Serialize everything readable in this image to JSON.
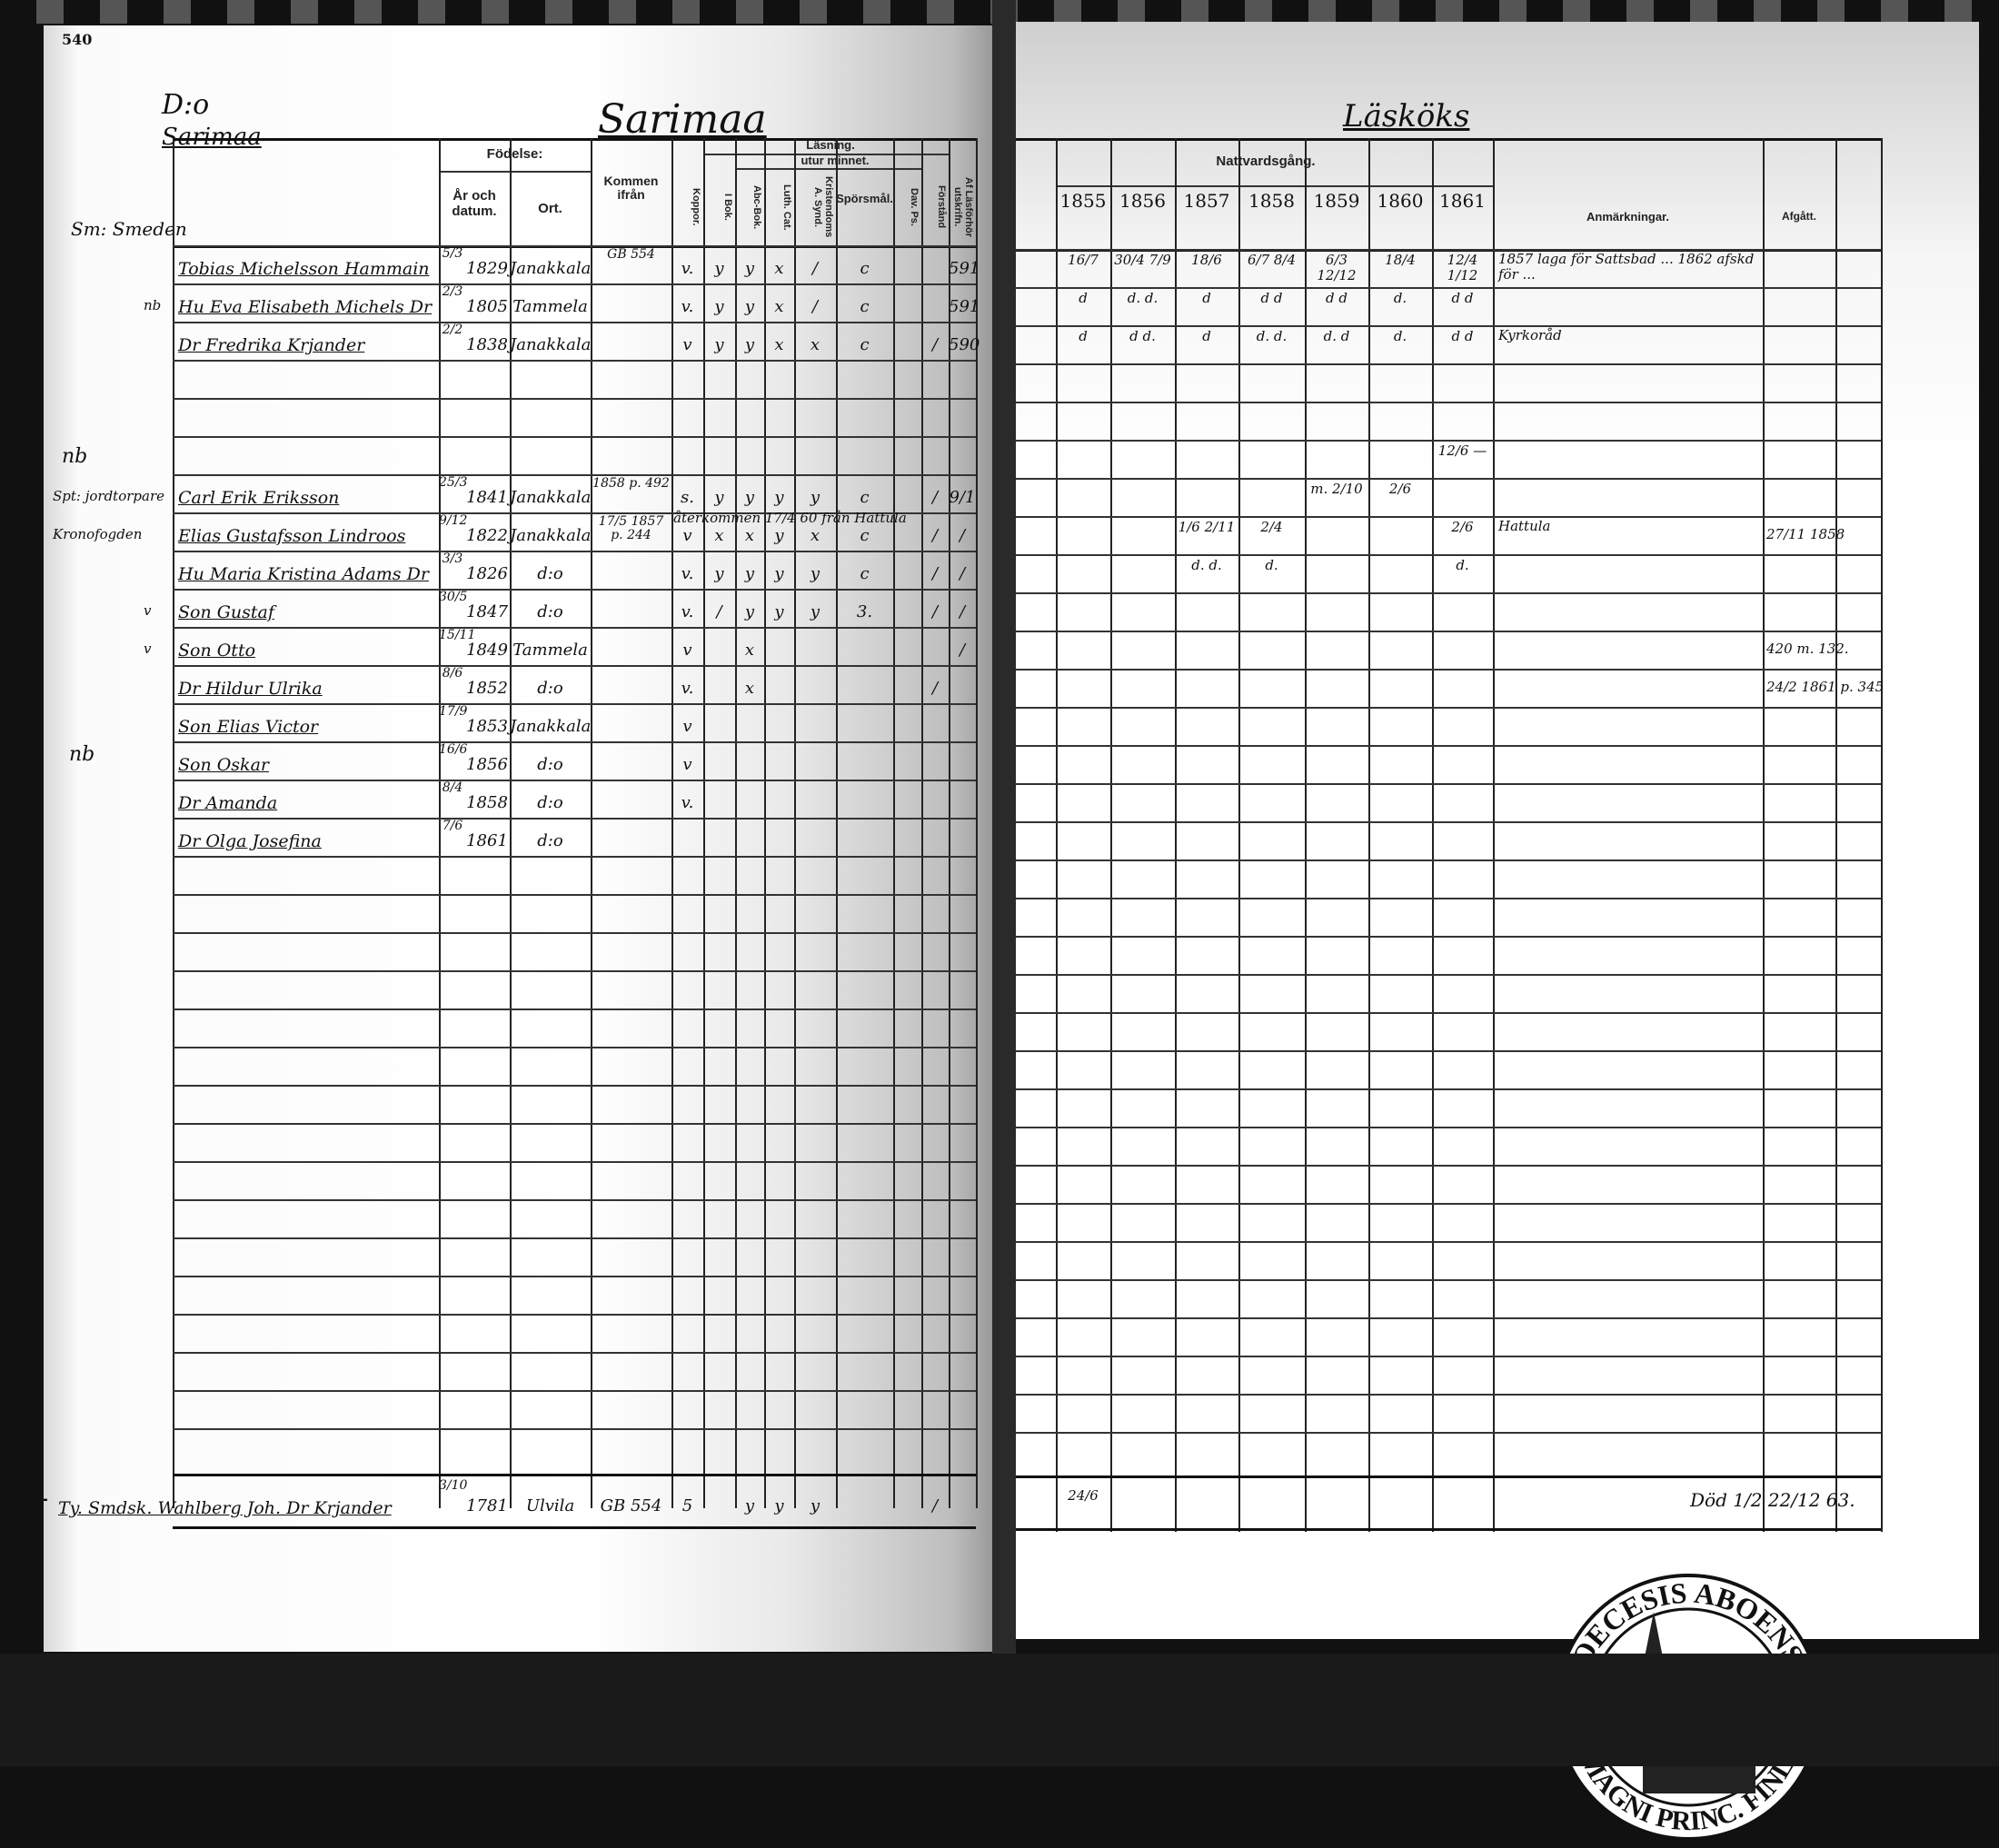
{
  "left_page": {
    "page_number": "540",
    "ditto_mark": "D:o",
    "village_small": "Sarimaa",
    "village_title": "Sarimaa",
    "household_label": "Sm: Smeden",
    "headers": {
      "birth": "Födelse:",
      "year_date": "År och datum.",
      "place": "Ort.",
      "came_from": "Kommen ifrån",
      "smallpox": "Koppor.",
      "reading": "Läsning.",
      "by_heart": "utur minnet.",
      "in_book": "I Bok.",
      "abc_book": "Abc-Bok.",
      "luth_cat": "Luth. Cat.",
      "a_synd": "Kristendoms A. Synd.",
      "questions": "Spörsmål.",
      "dav_ps": "Dav. Ps.",
      "col_12": "Förstånd",
      "col_13": "Af Läsförhör utskrifn."
    },
    "rows": [
      {
        "row": 0,
        "margin": "",
        "name": "Tobias Michelsson Hammain",
        "date": "5/3",
        "year": "1829",
        "place": "Janakkala",
        "from": "GB 554",
        "kopp": "v.",
        "ibok": "y",
        "abc": "y",
        "luth": "x",
        "asynd": "/",
        "spors": "c",
        "davps": "",
        "c12": "",
        "c13": "591"
      },
      {
        "row": 1,
        "margin": "nb",
        "name": "Hu Eva Elisabeth Michels Dr",
        "date": "2/3",
        "year": "1805",
        "place": "Tammela",
        "from": "",
        "kopp": "v.",
        "ibok": "y",
        "abc": "y",
        "luth": "x",
        "asynd": "/",
        "spors": "c",
        "davps": "",
        "c12": "",
        "c13": "591"
      },
      {
        "row": 2,
        "margin": "",
        "name": "Dr Fredrika Krjander",
        "date": "2/2",
        "year": "1838",
        "place": "Janakkala",
        "from": "",
        "kopp": "v",
        "ibok": "y",
        "abc": "y",
        "luth": "x",
        "asynd": "x",
        "spors": "c",
        "davps": "",
        "c12": "/",
        "c13": "590"
      },
      {
        "row": 6,
        "margin": "Spt: jordtorpare",
        "name": "Carl Erik Eriksson",
        "date": "25/3",
        "year": "1841",
        "place": "Janakkala",
        "from": "1858 p. 492",
        "kopp": "s.",
        "ibok": "y",
        "abc": "y",
        "luth": "y",
        "asynd": "y",
        "spors": "c",
        "davps": "",
        "c12": "/",
        "c13": "9/1"
      },
      {
        "row": 7,
        "margin": "Kronofogden",
        "name": "Elias Gustafsson Lindroos",
        "date": "9/12",
        "year": "1822",
        "place": "Janakkala",
        "from": "17/5 1857 p. 244",
        "kopp": "v",
        "ibok": "x",
        "abc": "x",
        "luth": "y",
        "asynd": "x",
        "spors": "c",
        "davps": "",
        "c12": "/",
        "c13": "/",
        "note": "återkommen 17/4 60 från Hattula"
      },
      {
        "row": 8,
        "margin": "",
        "name": "Hu Maria Kristina Adams Dr",
        "date": "3/3",
        "year": "1826",
        "place": "d:o",
        "from": "",
        "kopp": "v.",
        "ibok": "y",
        "abc": "y",
        "luth": "y",
        "asynd": "y",
        "spors": "c",
        "davps": "",
        "c12": "/",
        "c13": "/"
      },
      {
        "row": 9,
        "margin": "v",
        "name": "Son Gustaf",
        "date": "30/5",
        "year": "1847",
        "place": "d:o",
        "from": "",
        "kopp": "v.",
        "ibok": "/",
        "abc": "y",
        "luth": "y",
        "asynd": "y",
        "spors": "3.",
        "davps": "",
        "c12": "/",
        "c13": "/"
      },
      {
        "row": 10,
        "margin": "v",
        "name": "Son Otto",
        "date": "15/11",
        "year": "1849",
        "place": "Tammela",
        "from": "",
        "kopp": "v",
        "ibok": "",
        "abc": "x",
        "luth": "",
        "asynd": "",
        "spors": "",
        "davps": "",
        "c12": "",
        "c13": "/"
      },
      {
        "row": 11,
        "margin": "",
        "name": "Dr Hildur Ulrika",
        "date": "8/6",
        "year": "1852",
        "place": "d:o",
        "from": "",
        "kopp": "v.",
        "ibok": "",
        "abc": "x",
        "luth": "",
        "asynd": "",
        "spors": "",
        "davps": "",
        "c12": "/",
        "c13": ""
      },
      {
        "row": 12,
        "margin": "",
        "name": "Son Elias Victor",
        "date": "17/9",
        "year": "1853",
        "place": "Janakkala",
        "from": "",
        "kopp": "v",
        "ibok": "",
        "abc": "",
        "luth": "",
        "asynd": "",
        "spors": "",
        "davps": "",
        "c12": "",
        "c13": ""
      },
      {
        "row": 13,
        "margin": "",
        "name": "Son Oskar",
        "date": "16/6",
        "year": "1856",
        "place": "d:o",
        "from": "",
        "kopp": "v",
        "ibok": "",
        "abc": "",
        "luth": "",
        "asynd": "",
        "spors": "",
        "davps": "",
        "c12": "",
        "c13": ""
      },
      {
        "row": 14,
        "margin": "",
        "name": "Dr Amanda",
        "date": "8/4",
        "year": "1858",
        "place": "d:o",
        "from": "",
        "kopp": "v.",
        "ibok": "",
        "abc": "",
        "luth": "",
        "asynd": "",
        "spors": "",
        "davps": "",
        "c12": "",
        "c13": ""
      },
      {
        "row": 15,
        "margin": "",
        "name": "Dr Olga Josefina",
        "date": "7/6",
        "year": "1861",
        "place": "d:o",
        "from": "",
        "kopp": "",
        "ibok": "",
        "abc": "",
        "luth": "",
        "asynd": "",
        "spors": "",
        "davps": "",
        "c12": "",
        "c13": ""
      }
    ],
    "margin_nb_marks": [
      "nb",
      "nb"
    ],
    "footer_entry": {
      "cross": "+",
      "name": "Ty. Smdsk. Wahlberg Joh. Dr Krjander",
      "date": "3/10",
      "year": "1781",
      "place": "Ulvila",
      "from": "GB 554",
      "kopp": "5",
      "abc": "y",
      "luth": "y",
      "asynd": "y",
      "c12": "/"
    }
  },
  "right_page": {
    "title": "Läsköks",
    "headers": {
      "communion": "Nattvardsgång.",
      "remarks": "Anmärkningar.",
      "departed": "Afgått."
    },
    "years": [
      "1855",
      "1856",
      "1857",
      "1858",
      "1859",
      "1860",
      "1861"
    ],
    "rows": [
      {
        "row": 0,
        "c": [
          "16/7",
          "30/4 7/9",
          "18/6",
          "6/7 8/4",
          "6/3 12/12",
          "18/4",
          "12/4 1/12"
        ],
        "remarks": "1857 laga för Sattsbad ... 1862 afskd för ...",
        "departed": ""
      },
      {
        "row": 1,
        "c": [
          "d",
          "d. d.",
          "d",
          "d d",
          "d d",
          "d.",
          "d d"
        ],
        "remarks": "",
        "departed": ""
      },
      {
        "row": 2,
        "c": [
          "d",
          "d d.",
          "d",
          "d. d.",
          "d. d",
          "d.",
          "d d"
        ],
        "remarks": "Kyrkoråd",
        "departed": ""
      },
      {
        "row": 5,
        "c": [
          "",
          "",
          "",
          "",
          "",
          "",
          "12/6 —"
        ],
        "remarks": "",
        "departed": ""
      },
      {
        "row": 6,
        "c": [
          "",
          "",
          "",
          "",
          "m. 2/10",
          "2/6",
          ""
        ],
        "remarks": "",
        "departed": ""
      },
      {
        "row": 7,
        "c": [
          "",
          "",
          "1/6 2/11",
          "2/4",
          "",
          "",
          "2/6"
        ],
        "remarks": "Hattula",
        "departed": "27/11 1858"
      },
      {
        "row": 8,
        "c": [
          "",
          "",
          "d. d.",
          "d.",
          "",
          "",
          "d."
        ],
        "remarks": "",
        "departed": ""
      },
      {
        "row": 10,
        "c": [
          "",
          "",
          "",
          "",
          "",
          "",
          ""
        ],
        "remarks": "",
        "departed": "420 m. 132."
      },
      {
        "row": 11,
        "c": [
          "",
          "",
          "",
          "",
          "",
          "",
          ""
        ],
        "remarks": "",
        "departed": "24/2 1861 p. 345"
      }
    ],
    "footer_entry": {
      "c1855": "24/6",
      "departed": "Död 1/2 22/12 63."
    }
  },
  "stamp": {
    "text_top": "DIOECESIS ABOENSIS.",
    "text_bottom": "MAGNI PRINC. FINL."
  }
}
